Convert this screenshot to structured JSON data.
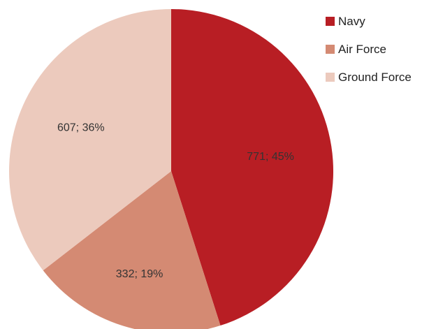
{
  "chart_data": {
    "type": "pie",
    "title": "",
    "categories": [
      "Navy",
      "Air Force",
      "Ground Force"
    ],
    "values": [
      771,
      332,
      607
    ],
    "percentages": [
      45,
      19,
      36
    ],
    "slice_labels": [
      "771; 45%",
      "332; 19%",
      "607; 36%"
    ],
    "colors": [
      "#B81E24",
      "#D48A73",
      "#ECCABD"
    ],
    "start_angle_deg": 0,
    "direction": "clockwise",
    "legend_position": "right"
  }
}
